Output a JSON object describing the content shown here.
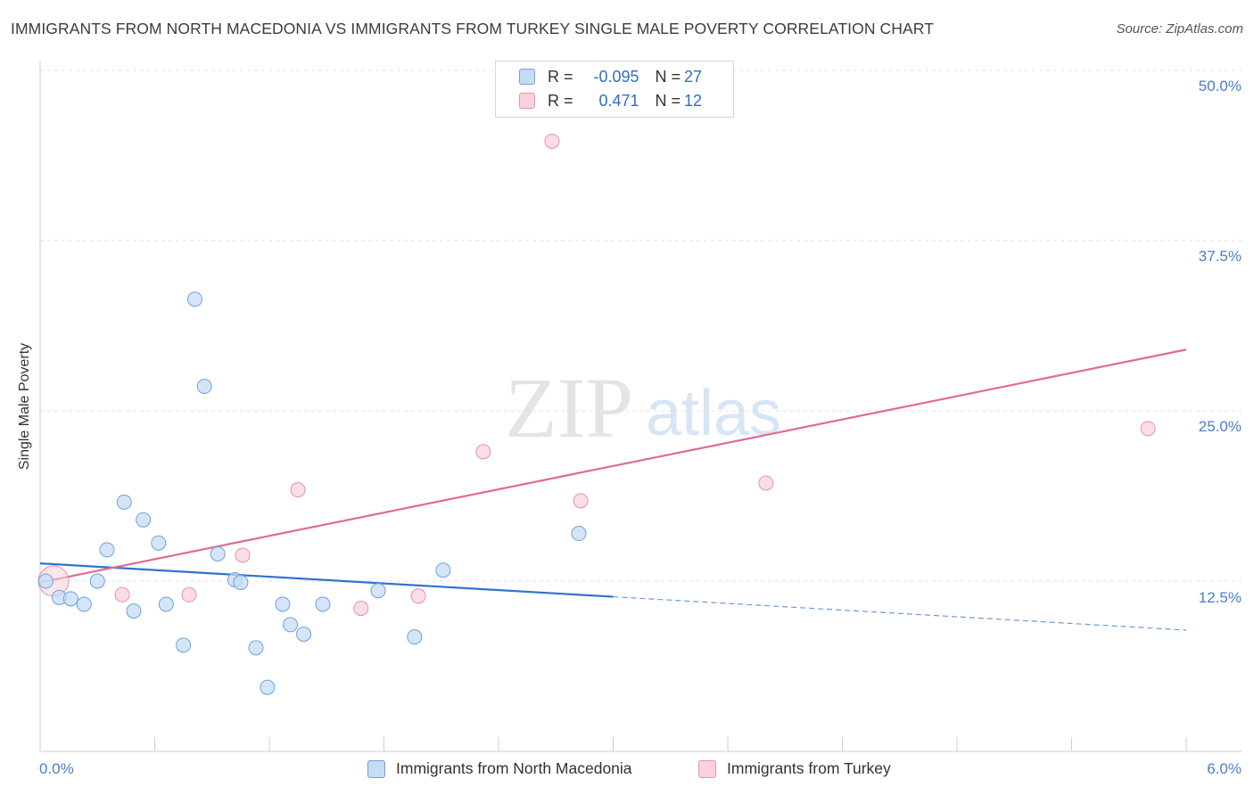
{
  "title": "IMMIGRANTS FROM NORTH MACEDONIA VS IMMIGRANTS FROM TURKEY SINGLE MALE POVERTY CORRELATION CHART",
  "source": "Source: ZipAtlas.com",
  "watermark": {
    "zip": "ZIP",
    "atlas": "atlas"
  },
  "legend": {
    "rows": [
      {
        "r_label": "R = ",
        "r_value": "-0.095",
        "n_label": "N = ",
        "n_value": "27"
      },
      {
        "r_label": "R = ",
        "r_value": "0.471",
        "n_label": "N = ",
        "n_value": "12"
      }
    ]
  },
  "chart_data": {
    "type": "scatter",
    "title": "IMMIGRANTS FROM NORTH MACEDONIA VS IMMIGRANTS FROM TURKEY SINGLE MALE POVERTY CORRELATION CHART",
    "xlabel": "",
    "ylabel": "Single Male Poverty",
    "xlim": [
      0,
      6.0
    ],
    "ylim": [
      0,
      50
    ],
    "x_tick_labels": [
      "0.0%",
      "6.0%"
    ],
    "y_ticks": [
      12.5,
      25.0,
      37.5,
      50.0
    ],
    "y_tick_labels": [
      "12.5%",
      "25.0%",
      "37.5%",
      "50.0%"
    ],
    "series": [
      {
        "name": "Immigrants from North Macedonia",
        "color": "#6fa0dc",
        "fill": "#c5dcf5",
        "R": -0.095,
        "N": 27,
        "points": [
          [
            0.03,
            12.5
          ],
          [
            0.1,
            11.3
          ],
          [
            0.16,
            11.2
          ],
          [
            0.23,
            10.8
          ],
          [
            0.3,
            12.5
          ],
          [
            0.35,
            14.8
          ],
          [
            0.44,
            18.3
          ],
          [
            0.49,
            10.3
          ],
          [
            0.54,
            17.0
          ],
          [
            0.62,
            15.3
          ],
          [
            0.66,
            10.8
          ],
          [
            0.75,
            7.8
          ],
          [
            0.81,
            33.2
          ],
          [
            0.86,
            26.8
          ],
          [
            0.93,
            14.5
          ],
          [
            1.02,
            12.6
          ],
          [
            1.05,
            12.4
          ],
          [
            1.13,
            7.6
          ],
          [
            1.19,
            4.7
          ],
          [
            1.27,
            10.8
          ],
          [
            1.31,
            9.3
          ],
          [
            1.38,
            8.6
          ],
          [
            1.48,
            10.8
          ],
          [
            1.77,
            11.8
          ],
          [
            1.96,
            8.4
          ],
          [
            2.11,
            13.3
          ],
          [
            2.82,
            16.0
          ]
        ],
        "trend": {
          "x0": 0.0,
          "y0": 13.8,
          "x_solid_end": 3.0,
          "x1": 6.0,
          "y1": 8.9
        }
      },
      {
        "name": "Immigrants from Turkey",
        "color": "#e890aa",
        "fill": "#f9d2dd",
        "R": 0.471,
        "N": 12,
        "points": [
          [
            0.07,
            12.5
          ],
          [
            0.43,
            11.5
          ],
          [
            0.78,
            11.5
          ],
          [
            1.06,
            14.4
          ],
          [
            1.35,
            19.2
          ],
          [
            1.68,
            10.5
          ],
          [
            1.98,
            11.4
          ],
          [
            2.32,
            22.0
          ],
          [
            2.68,
            44.8
          ],
          [
            2.83,
            18.4
          ],
          [
            3.8,
            19.7
          ],
          [
            5.8,
            23.7
          ]
        ],
        "trend": {
          "x0": 0.0,
          "y0": 12.4,
          "x1": 6.0,
          "y1": 29.5
        }
      }
    ]
  }
}
